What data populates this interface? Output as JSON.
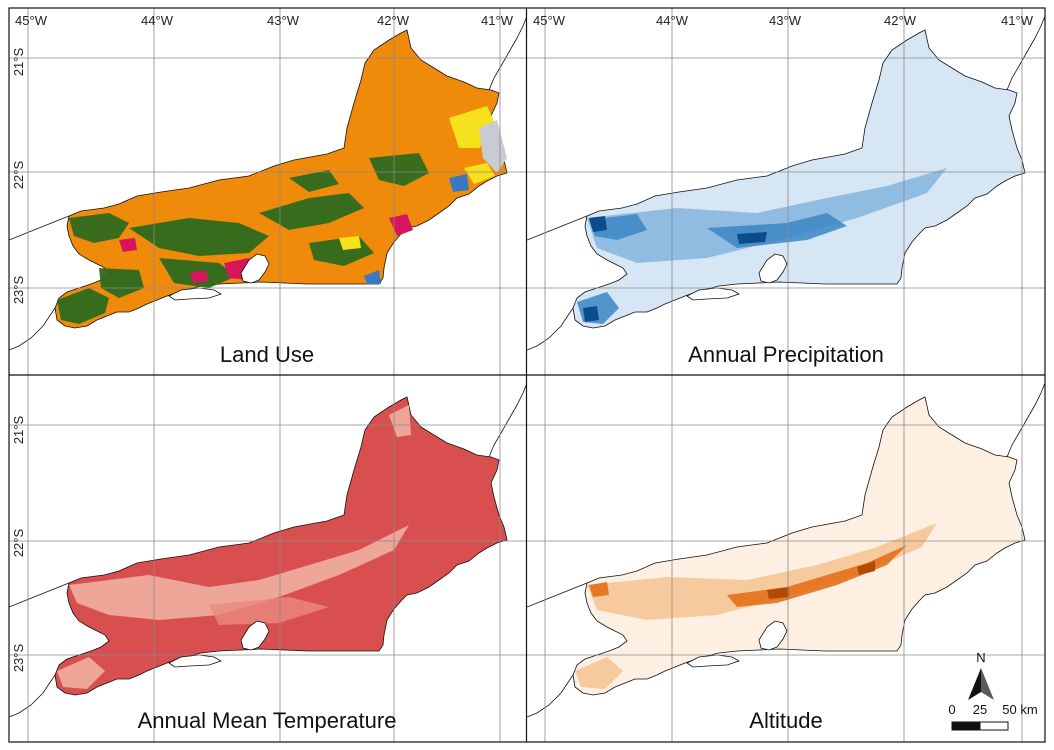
{
  "map": {
    "lon_labels": [
      "45°W",
      "44°W",
      "43°W",
      "42°W",
      "41°W"
    ],
    "lat_labels": [
      "21°S",
      "22°S",
      "23°S"
    ],
    "panels": [
      {
        "id": "land-use",
        "title": "Land Use",
        "fill": "#f08a0a",
        "accent": "#2e6b1f"
      },
      {
        "id": "annual-precipitation",
        "title": "Annual Precipitation",
        "fill": "#d6e6f4",
        "accent": "#1f6fb0"
      },
      {
        "id": "annual-mean-temperature",
        "title": "Annual Mean Temperature",
        "fill": "#d94f4f",
        "accent": "#f0b5a5"
      },
      {
        "id": "altitude",
        "title": "Altitude",
        "fill": "#fdf0e2",
        "accent": "#e36b12"
      }
    ],
    "north_arrow": {
      "label": "N"
    },
    "scale_bar": {
      "labels": [
        "0",
        "25",
        "50 km"
      ]
    }
  }
}
